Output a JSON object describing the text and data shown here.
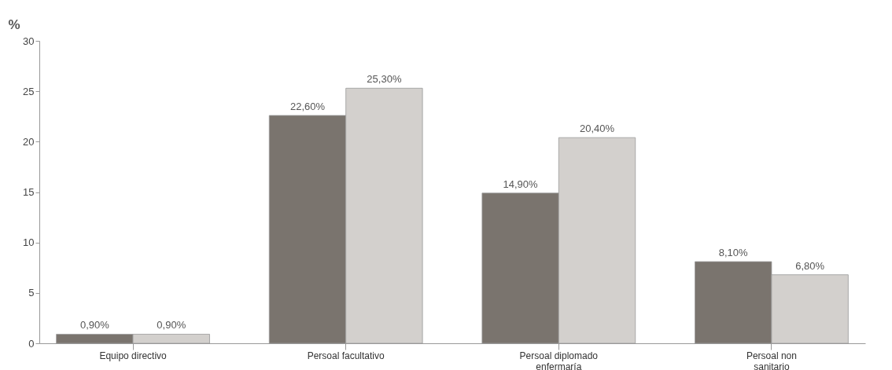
{
  "chart_data": {
    "type": "bar",
    "ylabel": "%",
    "categories": [
      "Equipo directivo",
      "Persoal facultativo",
      "Persoal diplomado enfermaría",
      "Persoal non sanitario"
    ],
    "series": [
      {
        "color": "#7a746e",
        "values": [
          0.9,
          22.6,
          14.9,
          8.1
        ],
        "value_labels": [
          "0,90%",
          "22,60%",
          "14,90%",
          "8,10%"
        ]
      },
      {
        "color": "#d3d0cd",
        "values": [
          0.9,
          25.3,
          20.4,
          6.8
        ],
        "value_labels": [
          "0,90%",
          "25,30%",
          "20,40%",
          "6,80%"
        ]
      }
    ],
    "ylim": [
      0,
      30
    ],
    "yticks": [
      0,
      5,
      10,
      15,
      20,
      25,
      30
    ],
    "grid": false,
    "legend": false
  }
}
